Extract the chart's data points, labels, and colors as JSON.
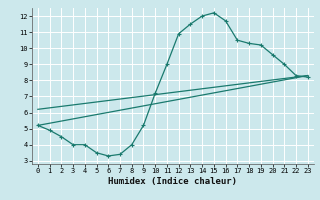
{
  "title": "",
  "xlabel": "Humidex (Indice chaleur)",
  "ylabel": "",
  "bg_color": "#cce8ec",
  "grid_color": "#ffffff",
  "line_color": "#1a7a6e",
  "xlim": [
    -0.5,
    23.5
  ],
  "ylim": [
    2.8,
    12.5
  ],
  "yticks": [
    3,
    4,
    5,
    6,
    7,
    8,
    9,
    10,
    11,
    12
  ],
  "xticks": [
    0,
    1,
    2,
    3,
    4,
    5,
    6,
    7,
    8,
    9,
    10,
    11,
    12,
    13,
    14,
    15,
    16,
    17,
    18,
    19,
    20,
    21,
    22,
    23
  ],
  "curve_x": [
    0,
    1,
    2,
    3,
    4,
    5,
    6,
    7,
    8,
    9,
    10,
    11,
    12,
    13,
    14,
    15,
    16,
    17,
    18,
    19,
    20,
    21,
    22,
    23
  ],
  "curve_y": [
    5.2,
    4.9,
    4.5,
    4.0,
    4.0,
    3.5,
    3.3,
    3.4,
    4.0,
    5.2,
    7.2,
    9.0,
    10.9,
    11.5,
    12.0,
    12.2,
    11.7,
    10.5,
    10.3,
    10.2,
    9.6,
    9.0,
    8.3,
    8.2
  ],
  "line1_x": [
    0,
    23
  ],
  "line1_y": [
    5.2,
    8.3
  ],
  "line2_x": [
    0,
    23
  ],
  "line2_y": [
    6.2,
    8.3
  ],
  "font_family": "monospace"
}
